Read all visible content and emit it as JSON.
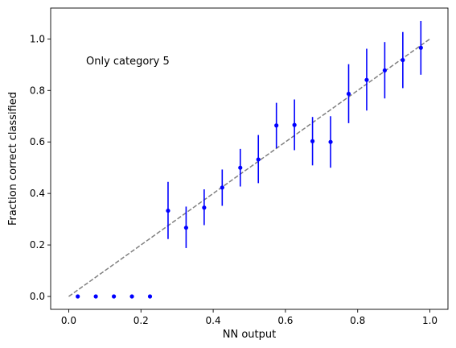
{
  "chart_data": {
    "type": "scatter",
    "xlabel": "NN output",
    "ylabel": "Fraction correct classified",
    "annotation": "Only category 5",
    "xlim": [
      -0.05,
      1.05
    ],
    "ylim": [
      -0.05,
      1.12
    ],
    "xticks": [
      0.0,
      0.2,
      0.4,
      0.6,
      0.8,
      1.0
    ],
    "xtick_labels": [
      "0.0",
      "0.2",
      "0.4",
      "0.6",
      "0.8",
      "1.0"
    ],
    "yticks": [
      0.0,
      0.2,
      0.4,
      0.6,
      0.8,
      1.0
    ],
    "ytick_labels": [
      "0.0",
      "0.2",
      "0.4",
      "0.6",
      "0.8",
      "1.0"
    ],
    "grid": false,
    "point_color": "#0000ff",
    "reference_line": {
      "from": [
        0,
        0
      ],
      "to": [
        1,
        1
      ],
      "style": "dashed",
      "color": "#808080"
    },
    "points": [
      {
        "x": 0.025,
        "y": 0.0
      },
      {
        "x": 0.075,
        "y": 0.0
      },
      {
        "x": 0.125,
        "y": 0.0
      },
      {
        "x": 0.175,
        "y": 0.0
      },
      {
        "x": 0.225,
        "y": 0.0
      },
      {
        "x": 0.275,
        "y": 0.333,
        "ylo": 0.223,
        "yhi": 0.445
      },
      {
        "x": 0.325,
        "y": 0.267,
        "ylo": 0.188,
        "yhi": 0.349
      },
      {
        "x": 0.375,
        "y": 0.345,
        "ylo": 0.277,
        "yhi": 0.416
      },
      {
        "x": 0.425,
        "y": 0.423,
        "ylo": 0.352,
        "yhi": 0.493
      },
      {
        "x": 0.475,
        "y": 0.5,
        "ylo": 0.427,
        "yhi": 0.573
      },
      {
        "x": 0.525,
        "y": 0.532,
        "ylo": 0.44,
        "yhi": 0.627
      },
      {
        "x": 0.575,
        "y": 0.664,
        "ylo": 0.576,
        "yhi": 0.752
      },
      {
        "x": 0.625,
        "y": 0.666,
        "ylo": 0.568,
        "yhi": 0.765
      },
      {
        "x": 0.675,
        "y": 0.603,
        "ylo": 0.509,
        "yhi": 0.697
      },
      {
        "x": 0.725,
        "y": 0.6,
        "ylo": 0.5,
        "yhi": 0.7
      },
      {
        "x": 0.775,
        "y": 0.787,
        "ylo": 0.673,
        "yhi": 0.902
      },
      {
        "x": 0.825,
        "y": 0.841,
        "ylo": 0.722,
        "yhi": 0.962
      },
      {
        "x": 0.875,
        "y": 0.878,
        "ylo": 0.769,
        "yhi": 0.988
      },
      {
        "x": 0.925,
        "y": 0.918,
        "ylo": 0.809,
        "yhi": 1.027
      },
      {
        "x": 0.975,
        "y": 0.966,
        "ylo": 0.861,
        "yhi": 1.07
      }
    ]
  }
}
